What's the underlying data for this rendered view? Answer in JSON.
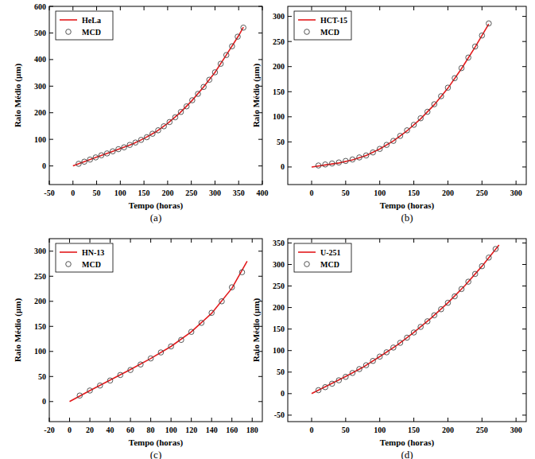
{
  "chart_data": [
    {
      "type": "line",
      "title": "(a)",
      "x_label": "Tempo (horas)",
      "y_label": "Raio Médio (μm)",
      "legend": "upper left",
      "grid": false,
      "xlim": [
        -50,
        400
      ],
      "xticks": [
        -50,
        0,
        50,
        100,
        150,
        200,
        250,
        300,
        350,
        400
      ],
      "ylim": [
        -70,
        600
      ],
      "yticks": [
        0,
        100,
        200,
        300,
        400,
        500,
        600
      ],
      "series": [
        {
          "name": "HeLa",
          "type": "line",
          "color": "#e31a1c",
          "line_style": "solid",
          "x": [
            0,
            25,
            50,
            75,
            100,
            125,
            150,
            175,
            200,
            225,
            250,
            275,
            300,
            325,
            350,
            360
          ],
          "values": [
            0,
            17,
            33,
            49,
            65,
            82,
            103,
            128,
            160,
            198,
            243,
            295,
            352,
            420,
            490,
            522
          ]
        },
        {
          "name": "MCD",
          "type": "scatter",
          "color": "#444444",
          "marker": "circle",
          "x": [
            12,
            24,
            36,
            48,
            60,
            72,
            84,
            96,
            108,
            120,
            132,
            144,
            156,
            168,
            180,
            192,
            204,
            216,
            228,
            240,
            252,
            264,
            276,
            288,
            300,
            312,
            324,
            336,
            348,
            360
          ],
          "values": [
            8,
            16,
            24,
            32,
            40,
            47,
            55,
            63,
            70,
            79,
            88,
            98,
            108,
            121,
            134,
            149,
            165,
            183,
            203,
            224,
            247,
            271,
            297,
            324,
            352,
            384,
            417,
            450,
            486,
            520
          ]
        }
      ]
    },
    {
      "type": "line",
      "title": "(b)",
      "x_label": "Tempo (horas)",
      "y_label": "Raio Médio (μm)",
      "legend": "upper left",
      "grid": false,
      "xlim": [
        -35,
        315
      ],
      "xticks": [
        0,
        50,
        100,
        150,
        200,
        250,
        300
      ],
      "ylim": [
        -35,
        320
      ],
      "yticks": [
        0,
        50,
        100,
        150,
        200,
        250,
        300
      ],
      "series": [
        {
          "name": "HCT-15",
          "type": "line",
          "color": "#e31a1c",
          "line_style": "solid",
          "x": [
            0,
            20,
            40,
            60,
            80,
            100,
            120,
            140,
            160,
            180,
            200,
            220,
            240,
            260
          ],
          "values": [
            0,
            4,
            8,
            14,
            23,
            36,
            52,
            72,
            96,
            124,
            157,
            196,
            239,
            285
          ]
        },
        {
          "name": "MCD",
          "type": "scatter",
          "color": "#444444",
          "marker": "circle",
          "x": [
            10,
            20,
            30,
            40,
            50,
            60,
            70,
            80,
            90,
            100,
            110,
            120,
            130,
            140,
            150,
            160,
            170,
            180,
            190,
            200,
            210,
            220,
            230,
            240,
            250,
            260
          ],
          "values": [
            3,
            5,
            7,
            9,
            12,
            15,
            19,
            23,
            29,
            36,
            44,
            52,
            62,
            73,
            84,
            97,
            110,
            125,
            141,
            158,
            177,
            197,
            218,
            240,
            262,
            286
          ]
        }
      ]
    },
    {
      "type": "line",
      "title": "(c)",
      "x_label": "Tempo (horas)",
      "y_label": "Raio Médio (μm)",
      "legend": "upper left",
      "grid": false,
      "xlim": [
        -20,
        190
      ],
      "xticks": [
        -20,
        0,
        20,
        40,
        60,
        80,
        100,
        120,
        140,
        160,
        180
      ],
      "ylim": [
        -40,
        325
      ],
      "yticks": [
        0,
        50,
        100,
        150,
        200,
        250,
        300
      ],
      "series": [
        {
          "name": "HN-13",
          "type": "line",
          "color": "#e31a1c",
          "line_style": "solid",
          "x": [
            0,
            20,
            40,
            60,
            80,
            100,
            120,
            140,
            160,
            175
          ],
          "values": [
            0,
            22,
            43,
            64,
            86,
            110,
            139,
            176,
            226,
            280
          ]
        },
        {
          "name": "MCD",
          "type": "scatter",
          "color": "#444444",
          "marker": "circle",
          "x": [
            10,
            20,
            30,
            40,
            50,
            60,
            70,
            80,
            90,
            100,
            110,
            120,
            130,
            140,
            150,
            160,
            170
          ],
          "values": [
            12,
            22,
            32,
            42,
            53,
            63,
            74,
            86,
            98,
            110,
            123,
            139,
            157,
            177,
            200,
            228,
            258
          ]
        }
      ]
    },
    {
      "type": "line",
      "title": "(d)",
      "x_label": "Tempo (horas)",
      "y_label": "Raio Médio (μm)",
      "legend": "upper left",
      "grid": false,
      "xlim": [
        -35,
        315
      ],
      "xticks": [
        0,
        50,
        100,
        150,
        200,
        250,
        300
      ],
      "ylim": [
        -65,
        360
      ],
      "yticks": [
        -50,
        0,
        50,
        100,
        150,
        200,
        250,
        300,
        350
      ],
      "series": [
        {
          "name": "U-251",
          "type": "line",
          "color": "#e31a1c",
          "line_style": "solid",
          "x": [
            0,
            25,
            50,
            75,
            100,
            125,
            150,
            175,
            200,
            225,
            250,
            275
          ],
          "values": [
            0,
            20,
            40,
            61,
            86,
            112,
            142,
            175,
            211,
            251,
            296,
            345
          ]
        },
        {
          "name": "MCD",
          "type": "scatter",
          "color": "#444444",
          "marker": "circle",
          "x": [
            10,
            20,
            30,
            40,
            50,
            60,
            70,
            80,
            90,
            100,
            110,
            120,
            130,
            140,
            150,
            160,
            170,
            180,
            190,
            200,
            210,
            220,
            230,
            240,
            250,
            260,
            270
          ],
          "values": [
            8,
            15,
            23,
            31,
            39,
            48,
            57,
            66,
            76,
            86,
            96,
            107,
            118,
            130,
            142,
            155,
            168,
            182,
            196,
            211,
            226,
            243,
            260,
            278,
            296,
            316,
            336
          ]
        }
      ]
    }
  ]
}
